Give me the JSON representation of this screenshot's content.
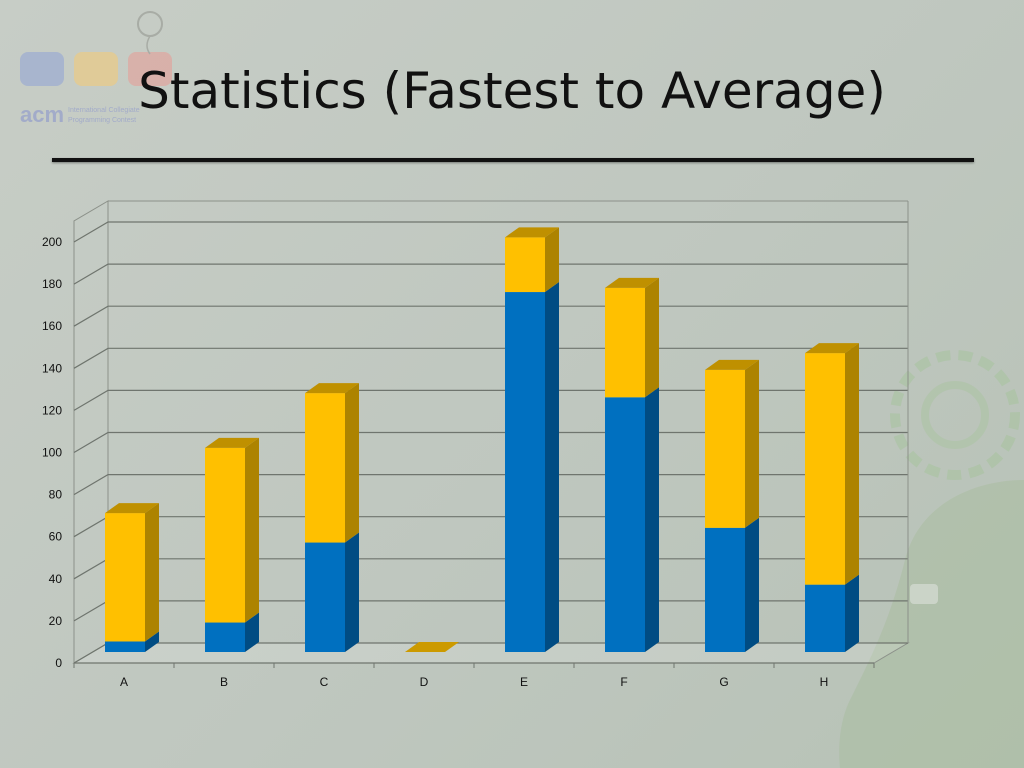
{
  "slide": {
    "title": "Statistics (Fastest to Average)",
    "logo": {
      "brand_text": "acm",
      "sub_line_1": "International Collegiate",
      "sub_line_2": "Programming Contest"
    }
  },
  "chart_data": {
    "type": "bar",
    "stacked": true,
    "three_d": true,
    "categories": [
      "A",
      "B",
      "C",
      "D",
      "E",
      "F",
      "G",
      "H"
    ],
    "series": [
      {
        "values": [
          5,
          14,
          52,
          0,
          171,
          121,
          59,
          32
        ],
        "color": "#0070c0"
      },
      {
        "values": [
          61,
          83,
          71,
          0,
          26,
          52,
          75,
          110
        ],
        "color": "#ffc000"
      }
    ],
    "y_ticks": [
      0,
      20,
      40,
      60,
      80,
      100,
      120,
      140,
      160,
      180,
      200
    ],
    "ylim": [
      0,
      210
    ],
    "grid": true,
    "legend": "none"
  }
}
